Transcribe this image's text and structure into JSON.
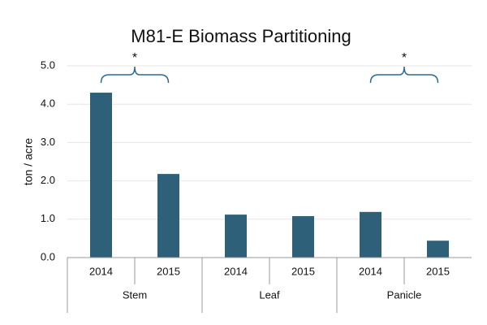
{
  "chart_data": {
    "type": "bar",
    "title": "M81-E Biomass Partitioning",
    "y_label": "ton / acre",
    "categories": [
      "2014",
      "2015",
      "2014",
      "2015",
      "2014",
      "2015"
    ],
    "groups": [
      "Stem",
      "Leaf",
      "Panicle"
    ],
    "values": [
      4.3,
      2.18,
      1.12,
      1.08,
      1.19,
      0.44
    ],
    "color": "#2e6179",
    "ylim": [
      0,
      5
    ],
    "yticks": [
      {
        "value": 0,
        "label": "0.0"
      },
      {
        "value": 1,
        "label": "1.0"
      },
      {
        "value": 2,
        "label": "2.0"
      },
      {
        "value": 3,
        "label": "3.0"
      },
      {
        "value": 4,
        "label": "4.0"
      },
      {
        "value": 5,
        "label": "5.0"
      }
    ],
    "grid": true,
    "annotations": [
      "*",
      "*"
    ]
  }
}
